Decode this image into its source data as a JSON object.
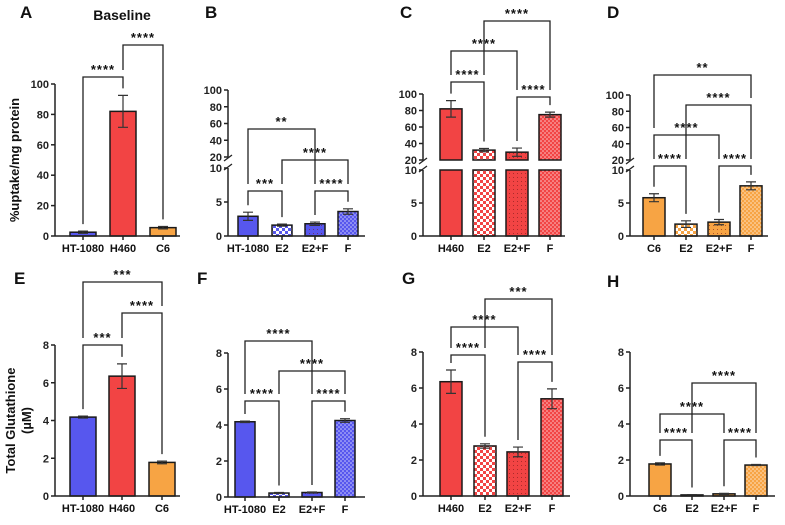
{
  "colors": {
    "blue": "#5757ee",
    "red": "#f24444",
    "orange": "#f7a444",
    "stroke": "#1a1a1a"
  },
  "chart_data": [
    {
      "letter": "A",
      "title": "Baseline",
      "type": "bar",
      "ylabel": "%uptake/mg protein",
      "ylim": [
        0,
        100
      ],
      "yticks": [
        0,
        20,
        40,
        60,
        80,
        100
      ],
      "axis_break": null,
      "categories": [
        "HT-1080",
        "H460",
        "C6"
      ],
      "values": [
        2.5,
        82,
        5.5
      ],
      "errors": [
        0.7,
        10.5,
        0.8
      ],
      "colors": [
        "blue",
        "red",
        "orange"
      ],
      "patterns": [
        "solid",
        "solid",
        "solid"
      ],
      "comparisons": [
        {
          "from": 0,
          "to": 1,
          "label": "****"
        },
        {
          "from": 1,
          "to": 2,
          "label": "****"
        }
      ]
    },
    {
      "letter": "B",
      "title": "",
      "type": "bar",
      "ylabel": "",
      "ylim": [
        0,
        100
      ],
      "yticks": [
        0,
        5,
        10,
        20,
        40,
        60,
        80,
        100
      ],
      "axis_break": [
        10,
        20
      ],
      "categories": [
        "HT-1080",
        "E2",
        "E2+F",
        "F"
      ],
      "values": [
        2.9,
        1.6,
        1.8,
        3.6
      ],
      "errors": [
        0.6,
        0.15,
        0.25,
        0.4
      ],
      "colors": [
        "blue",
        "blue",
        "blue",
        "blue"
      ],
      "patterns": [
        "solid",
        "checker",
        "dots",
        "fine"
      ],
      "comparisons": [
        {
          "from": 0,
          "to": 1,
          "label": "***"
        },
        {
          "from": 2,
          "to": 3,
          "label": "****"
        },
        {
          "from": 1,
          "to": 3,
          "label": "****"
        },
        {
          "from": 0,
          "to": 2,
          "label": "**"
        }
      ]
    },
    {
      "letter": "C",
      "title": "",
      "type": "bar",
      "ylabel": "",
      "ylim": [
        0,
        100
      ],
      "yticks": [
        0,
        5,
        10,
        20,
        40,
        60,
        80,
        100
      ],
      "axis_break": [
        10,
        20
      ],
      "categories": [
        "H460",
        "E2",
        "E2+F",
        "F"
      ],
      "values": [
        82,
        32,
        29.5,
        75
      ],
      "errors": [
        10,
        2,
        5,
        3
      ],
      "colors": [
        "red",
        "red",
        "red",
        "red"
      ],
      "patterns": [
        "solid",
        "checker",
        "dots",
        "fine"
      ],
      "comparisons": [
        {
          "from": 0,
          "to": 1,
          "label": "****"
        },
        {
          "from": 2,
          "to": 3,
          "label": "****"
        },
        {
          "from": 0,
          "to": 2,
          "label": "****"
        },
        {
          "from": 1,
          "to": 3,
          "label": "****"
        }
      ]
    },
    {
      "letter": "D",
      "title": "",
      "type": "bar",
      "ylabel": "",
      "ylim": [
        0,
        100
      ],
      "yticks": [
        0,
        5,
        10,
        20,
        40,
        60,
        80,
        100
      ],
      "axis_break": [
        10,
        20
      ],
      "categories": [
        "C6",
        "E2",
        "E2+F",
        "F"
      ],
      "values": [
        5.8,
        1.8,
        2.1,
        7.6
      ],
      "errors": [
        0.6,
        0.5,
        0.4,
        0.6
      ],
      "colors": [
        "orange",
        "orange",
        "orange",
        "orange"
      ],
      "patterns": [
        "solid",
        "checker",
        "dots",
        "fine"
      ],
      "comparisons": [
        {
          "from": 0,
          "to": 1,
          "label": "****"
        },
        {
          "from": 2,
          "to": 3,
          "label": "****"
        },
        {
          "from": 0,
          "to": 2,
          "label": "****"
        },
        {
          "from": 1,
          "to": 3,
          "label": "****"
        },
        {
          "from": 0,
          "to": 3,
          "label": "**"
        }
      ]
    },
    {
      "letter": "E",
      "title": "",
      "type": "bar",
      "ylabel": "Total  Glutathione",
      "ylabel2": "(µM)",
      "ylim": [
        0,
        8
      ],
      "yticks": [
        0,
        2,
        4,
        6,
        8
      ],
      "axis_break": null,
      "categories": [
        "HT-1080",
        "H460",
        "C6"
      ],
      "values": [
        4.18,
        6.35,
        1.78
      ],
      "errors": [
        0.05,
        0.65,
        0.07
      ],
      "colors": [
        "blue",
        "red",
        "orange"
      ],
      "patterns": [
        "solid",
        "solid",
        "solid"
      ],
      "comparisons": [
        {
          "from": 0,
          "to": 1,
          "label": "***"
        },
        {
          "from": 1,
          "to": 2,
          "label": "****"
        },
        {
          "from": 0,
          "to": 2,
          "label": "***"
        }
      ]
    },
    {
      "letter": "F",
      "title": "",
      "type": "bar",
      "ylabel": "",
      "ylim": [
        0,
        8
      ],
      "yticks": [
        0,
        2,
        4,
        6,
        8
      ],
      "axis_break": null,
      "categories": [
        "HT-1080",
        "E2",
        "E2+F",
        "F"
      ],
      "values": [
        4.18,
        0.22,
        0.25,
        4.25
      ],
      "errors": [
        0.04,
        0.03,
        0.03,
        0.1
      ],
      "colors": [
        "blue",
        "blue",
        "blue",
        "blue"
      ],
      "patterns": [
        "solid",
        "checker",
        "dots",
        "fine"
      ],
      "comparisons": [
        {
          "from": 0,
          "to": 1,
          "label": "****"
        },
        {
          "from": 2,
          "to": 3,
          "label": "****"
        },
        {
          "from": 1,
          "to": 3,
          "label": "****"
        },
        {
          "from": 0,
          "to": 2,
          "label": "****"
        }
      ]
    },
    {
      "letter": "G",
      "title": "",
      "type": "bar",
      "ylabel": "",
      "ylim": [
        0,
        8
      ],
      "yticks": [
        0,
        2,
        4,
        6,
        8
      ],
      "axis_break": null,
      "categories": [
        "H460",
        "E2",
        "E2+F",
        "F"
      ],
      "values": [
        6.35,
        2.78,
        2.45,
        5.4
      ],
      "errors": [
        0.65,
        0.12,
        0.27,
        0.55
      ],
      "colors": [
        "red",
        "red",
        "red",
        "red"
      ],
      "patterns": [
        "solid",
        "checker",
        "dots",
        "fine"
      ],
      "comparisons": [
        {
          "from": 0,
          "to": 1,
          "label": "****"
        },
        {
          "from": 2,
          "to": 3,
          "label": "****"
        },
        {
          "from": 0,
          "to": 2,
          "label": "****"
        },
        {
          "from": 1,
          "to": 3,
          "label": "***"
        }
      ]
    },
    {
      "letter": "H",
      "title": "",
      "type": "bar",
      "ylabel": "",
      "ylim": [
        0,
        8
      ],
      "yticks": [
        0,
        2,
        4,
        6,
        8
      ],
      "axis_break": null,
      "categories": [
        "C6",
        "E2",
        "E2+F",
        "F"
      ],
      "values": [
        1.78,
        0.06,
        0.12,
        1.72
      ],
      "errors": [
        0.06,
        0.02,
        0.03,
        0.03
      ],
      "colors": [
        "orange",
        "orange",
        "orange",
        "orange"
      ],
      "patterns": [
        "solid",
        "checker",
        "dots",
        "fine"
      ],
      "comparisons": [
        {
          "from": 0,
          "to": 1,
          "label": "****"
        },
        {
          "from": 2,
          "to": 3,
          "label": "****"
        },
        {
          "from": 0,
          "to": 2,
          "label": "****"
        },
        {
          "from": 1,
          "to": 3,
          "label": "****"
        }
      ]
    }
  ]
}
